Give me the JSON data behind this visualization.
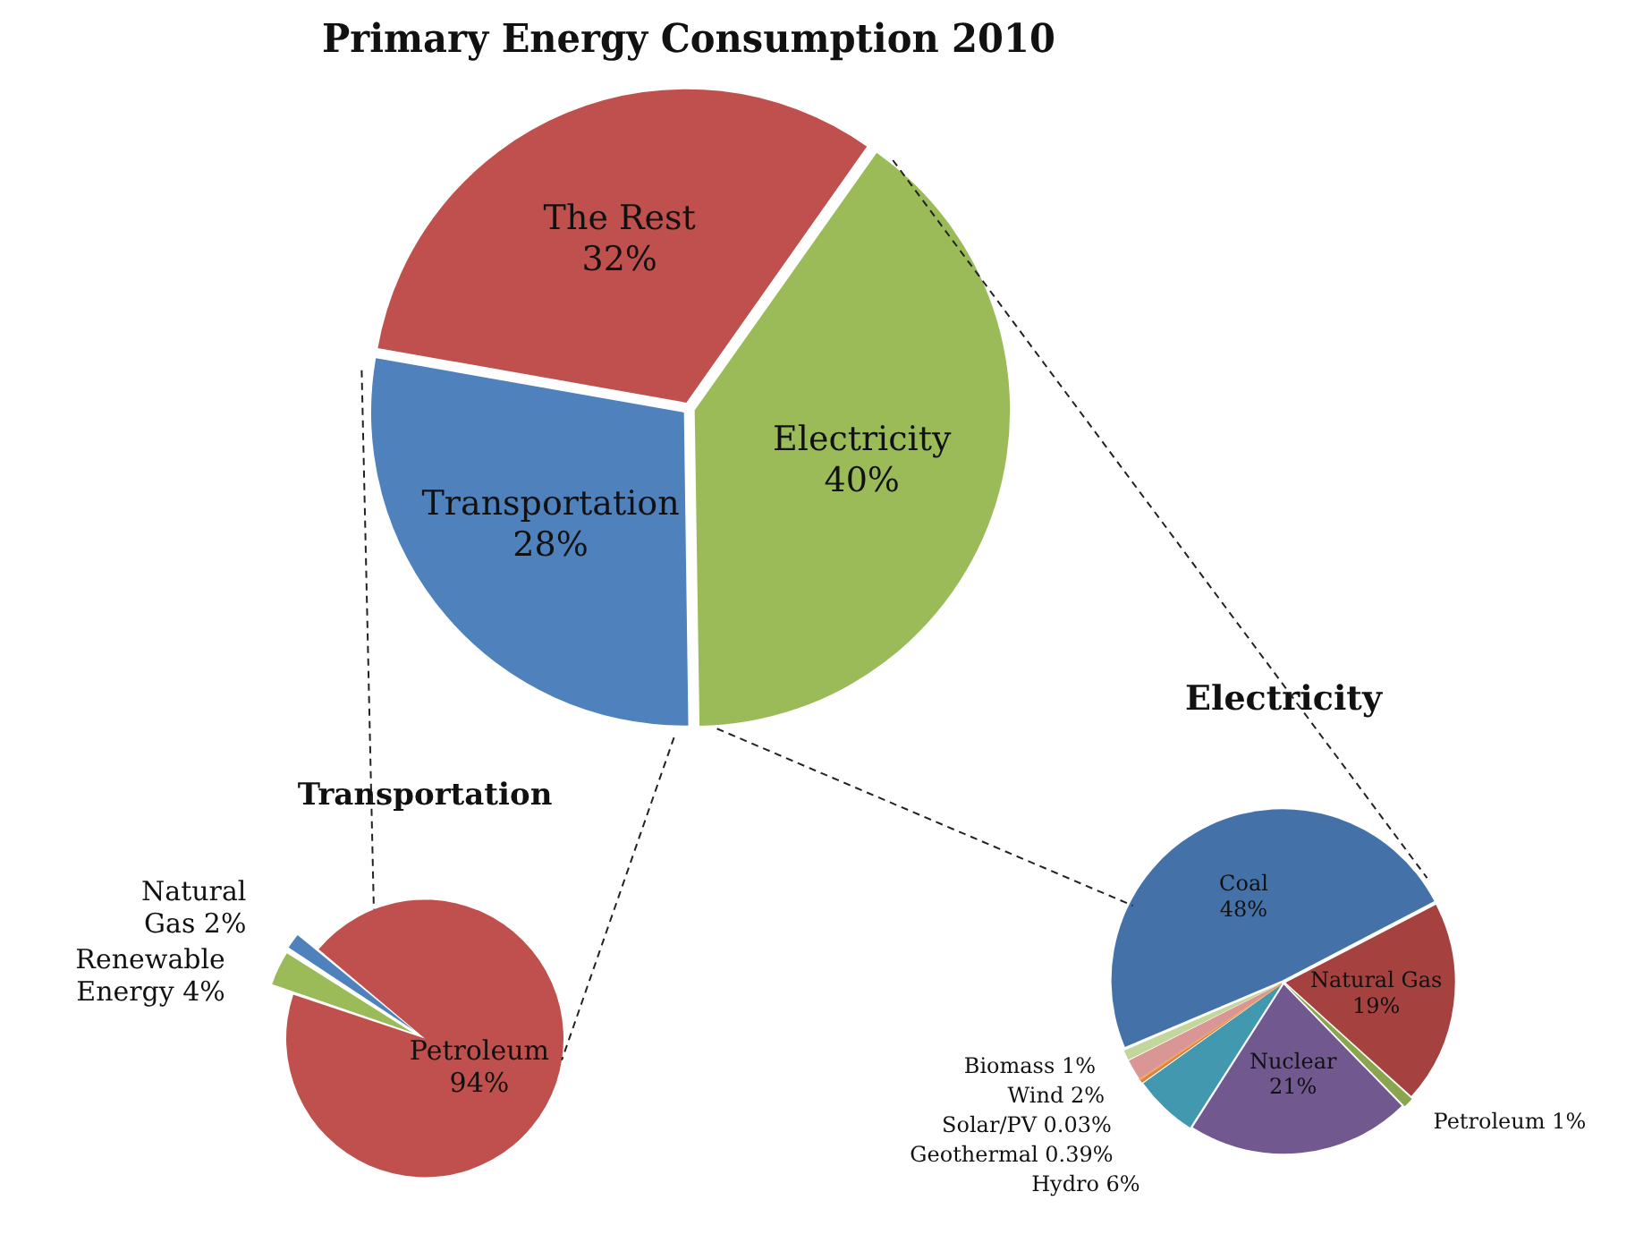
{
  "chart_data": [
    {
      "type": "pie",
      "title": "Primary Energy Consumption 2010",
      "categories": [
        "The Rest",
        "Electricity",
        "Transportation"
      ],
      "values": [
        32,
        40,
        28
      ],
      "value_labels": [
        "32%",
        "40%",
        "28%"
      ],
      "colors": [
        "#c0504d",
        "#9bbb59",
        "#4f81bd"
      ]
    },
    {
      "type": "pie",
      "title": "Transportation",
      "categories": [
        "Petroleum",
        "Renewable Energy",
        "Natural Gas"
      ],
      "values": [
        94,
        4,
        2
      ],
      "value_labels": [
        "94%",
        "4%",
        "2%"
      ],
      "colors": [
        "#c0504d",
        "#9bbb59",
        "#4f81bd"
      ]
    },
    {
      "type": "pie",
      "title": "Electricity",
      "categories": [
        "Coal",
        "Natural Gas",
        "Petroleum",
        "Nuclear",
        "Hydro",
        "Geothermal",
        "Solar/PV",
        "Wind",
        "Biomass"
      ],
      "values": [
        48,
        19,
        1,
        21,
        6,
        0.39,
        0.03,
        2,
        1
      ],
      "value_labels": [
        "48%",
        "19%",
        "1%",
        "21%",
        "6%",
        "0.39%",
        "0.03%",
        "2%",
        "1%"
      ],
      "colors": [
        "#4472a8",
        "#a5413f",
        "#89a54e",
        "#71588f",
        "#4198af",
        "#db843d",
        "#f0a868",
        "#d99694",
        "#c3d69b"
      ]
    }
  ]
}
